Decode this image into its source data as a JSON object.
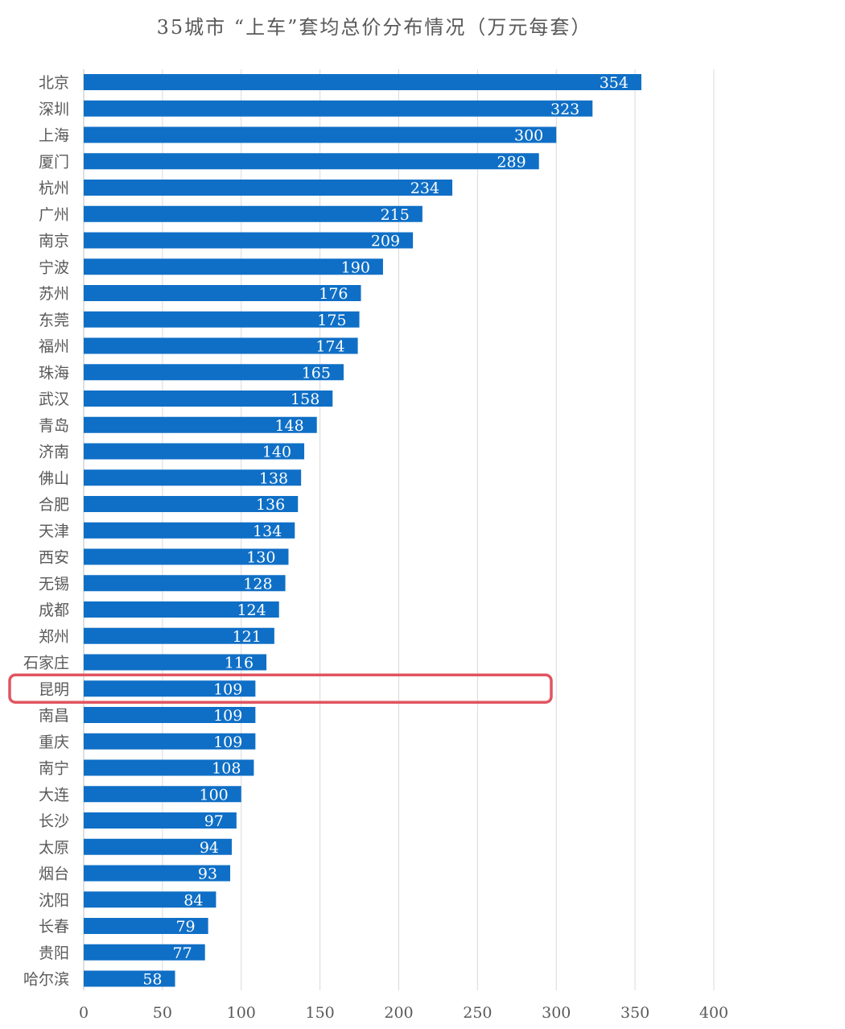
{
  "chart_data": {
    "type": "bar",
    "orientation": "horizontal",
    "title": "35城市 “上车”套均总价分布情况（万元每套）",
    "categories": [
      "北京",
      "深圳",
      "上海",
      "厦门",
      "杭州",
      "广州",
      "南京",
      "宁波",
      "苏州",
      "东莞",
      "福州",
      "珠海",
      "武汉",
      "青岛",
      "济南",
      "佛山",
      "合肥",
      "天津",
      "西安",
      "无锡",
      "成都",
      "郑州",
      "石家庄",
      "昆明",
      "南昌",
      "重庆",
      "南宁",
      "大连",
      "长沙",
      "太原",
      "烟台",
      "沈阳",
      "长春",
      "贵阳",
      "哈尔滨"
    ],
    "values": [
      354,
      323,
      300,
      289,
      234,
      215,
      209,
      190,
      176,
      175,
      174,
      165,
      158,
      148,
      140,
      138,
      136,
      134,
      130,
      128,
      124,
      121,
      116,
      109,
      109,
      109,
      108,
      100,
      97,
      94,
      93,
      84,
      79,
      77,
      58
    ],
    "xlim": [
      0,
      400
    ],
    "xticks": [
      "0",
      "50",
      "100",
      "150",
      "200",
      "250",
      "300",
      "350",
      "400"
    ],
    "grid": "vertical",
    "bar_color": "#0F6FC6",
    "highlight": {
      "category": "昆明",
      "color": "#E05560"
    }
  }
}
